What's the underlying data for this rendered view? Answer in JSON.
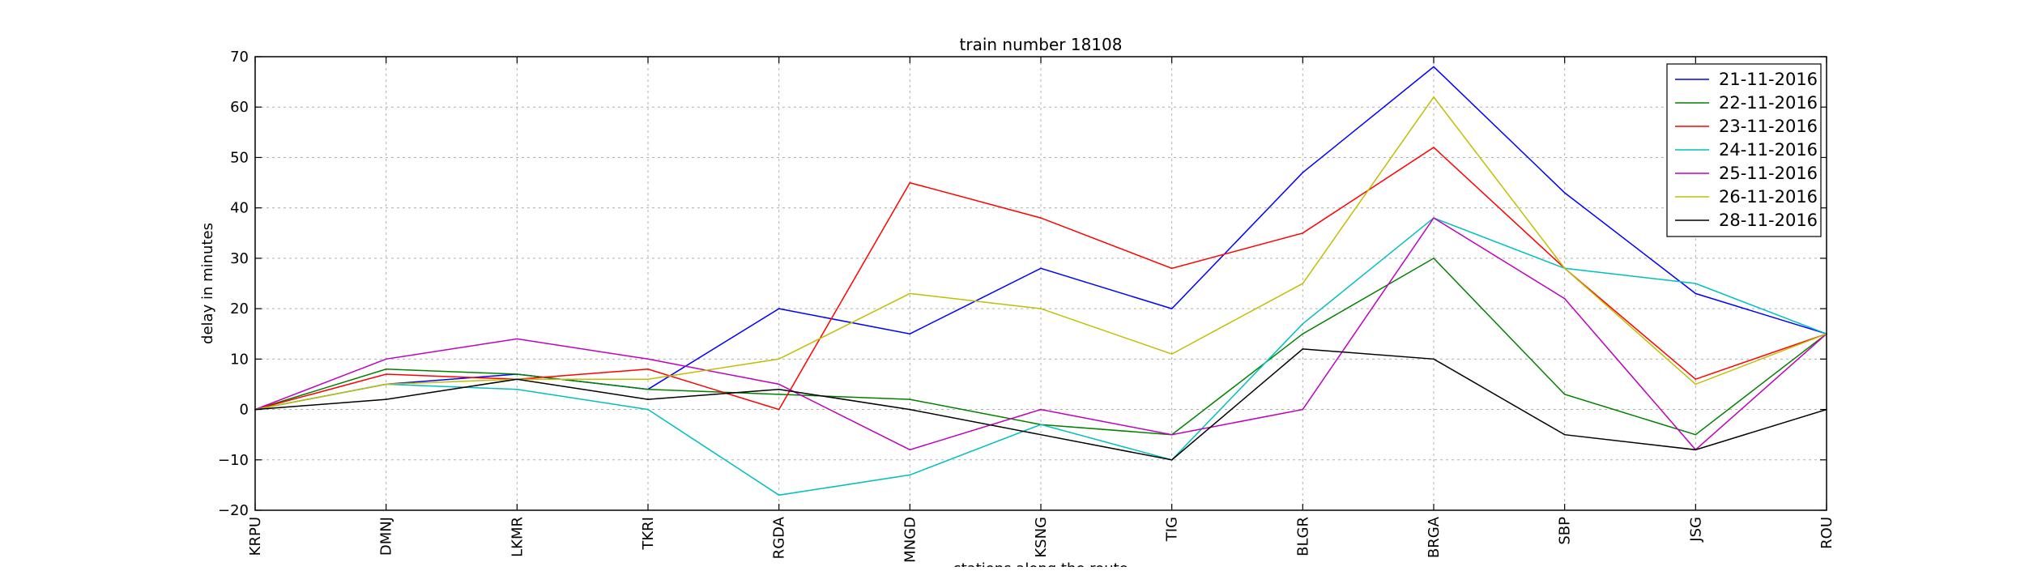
{
  "chart_data": {
    "type": "line",
    "title": "train number 18108",
    "xlabel": "stations along the route",
    "ylabel": "delay in minutes",
    "categories": [
      "KRPU",
      "DMNJ",
      "LKMR",
      "TKRI",
      "RGDA",
      "MNGD",
      "KSNG",
      "TIG",
      "BLGR",
      "BRGA",
      "SBP",
      "JSG",
      "ROU"
    ],
    "ylim": [
      -20,
      70
    ],
    "yticks": [
      -20,
      -10,
      0,
      10,
      20,
      30,
      40,
      50,
      60,
      70
    ],
    "grid": true,
    "legend_position": "top-right",
    "series": [
      {
        "name": "21-11-2016",
        "color": "#0000ff",
        "values": [
          0,
          5,
          7,
          4,
          20,
          15,
          28,
          20,
          47,
          68,
          43,
          23,
          15
        ]
      },
      {
        "name": "22-11-2016",
        "color": "#008000",
        "values": [
          0,
          8,
          7,
          4,
          3,
          2,
          -3,
          -5,
          15,
          30,
          3,
          -5,
          15
        ]
      },
      {
        "name": "23-11-2016",
        "color": "#ff0000",
        "values": [
          0,
          7,
          6,
          8,
          0,
          45,
          38,
          28,
          35,
          52,
          28,
          6,
          15
        ]
      },
      {
        "name": "24-11-2016",
        "color": "#00bfbf",
        "values": [
          0,
          5,
          4,
          0,
          -17,
          -13,
          -3,
          -10,
          17,
          38,
          28,
          25,
          15
        ]
      },
      {
        "name": "25-11-2016",
        "color": "#bf00bf",
        "values": [
          0,
          10,
          14,
          10,
          5,
          -8,
          0,
          -5,
          0,
          38,
          22,
          -8,
          15
        ]
      },
      {
        "name": "26-11-2016",
        "color": "#bfbf00",
        "values": [
          0,
          5,
          6,
          6,
          10,
          23,
          20,
          11,
          25,
          62,
          28,
          5,
          15
        ]
      },
      {
        "name": "28-11-2016",
        "color": "#000000",
        "values": [
          0,
          2,
          6,
          2,
          4,
          0,
          -5,
          -10,
          12,
          10,
          -5,
          -8,
          0
        ]
      }
    ]
  }
}
